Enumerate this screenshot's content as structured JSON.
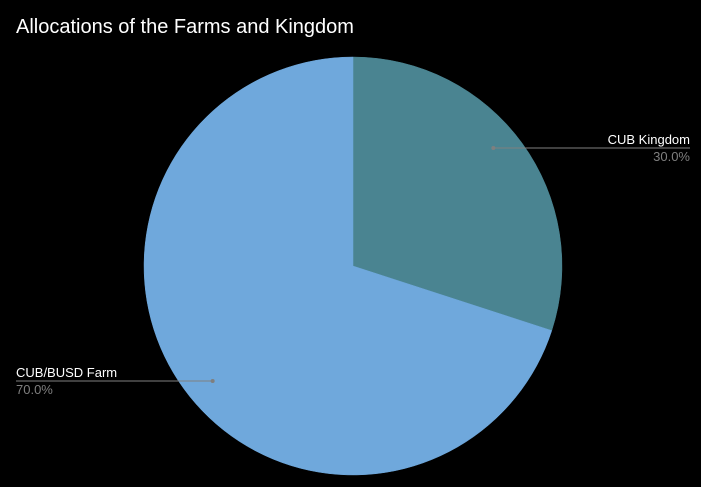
{
  "chart_data": {
    "type": "pie",
    "title": "Allocations of the Farms and Kingdom",
    "slices": [
      {
        "label": "CUB Kingdom",
        "value": 30.0,
        "percent_label": "30.0%",
        "color": "#4a8491"
      },
      {
        "label": "CUB/BUSD Farm",
        "value": 70.0,
        "percent_label": "70.0%",
        "color": "#6fa8dc"
      }
    ],
    "start": "12 o'clock",
    "direction": "clockwise",
    "legend": "none",
    "labels": "outside with leader lines"
  },
  "colors": {
    "background": "#000000",
    "title_text": "#ffffff",
    "label_text": "#ffffff",
    "percent_text": "#7f7f7f",
    "leader_line": "#7f7f7f"
  }
}
